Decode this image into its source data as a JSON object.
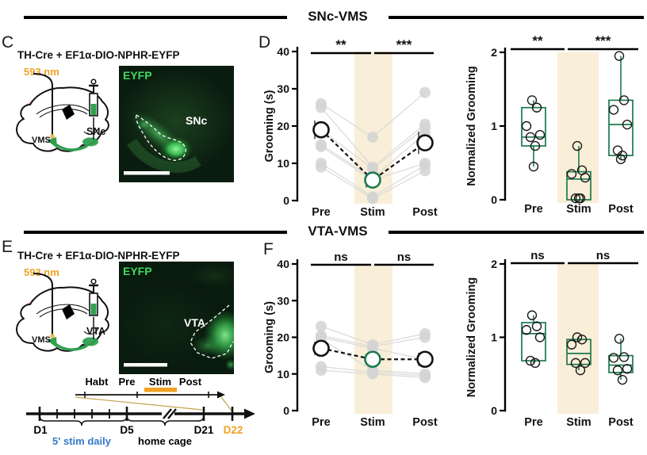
{
  "sections": {
    "snc": {
      "title": "SNc-VMS"
    },
    "vta": {
      "title": "VTA-VMS"
    }
  },
  "colors": {
    "green": "#1b7a4f",
    "schematic_green": "#2fa050",
    "orange": "#f2a124",
    "stim_band": "#f9efd8",
    "blue": "#3779c9",
    "subject_point": "#d3d3d3",
    "pink": "#f8c6d8",
    "eyfp_green": "#41d95d"
  },
  "panel_c": {
    "label": "C",
    "title": "TH-Cre + EF1α-DIO-NPHR-EYFP",
    "wavelength": "593 nm",
    "schematic": {
      "fiber_label": "VMS",
      "site_label": "SNc"
    },
    "micrograph": {
      "stain": "EYFP",
      "region": "SNc"
    }
  },
  "panel_d": {
    "label": "D"
  },
  "panel_e": {
    "label": "E",
    "title": "TH-Cre + EF1α-DIO-NPHR-EYFP",
    "wavelength": "593 nm",
    "schematic": {
      "fiber_label": "VMS",
      "site_label": "VTA"
    },
    "micrograph": {
      "stain": "EYFP",
      "region": "VTA"
    },
    "timeline": {
      "stages": [
        "Habt",
        "Pre",
        "Stim",
        "Post"
      ],
      "days": [
        "D1",
        "D5",
        "D21",
        "D22"
      ],
      "stim_daily_label": "5' stim daily",
      "home_cage_label": "home cage"
    }
  },
  "panel_f": {
    "label": "F"
  },
  "chart_data": [
    {
      "id": "snc_grooming",
      "panel": "D",
      "type": "paired-scatter",
      "title": "",
      "ylabel": "Grooming (s)",
      "ylim": [
        0,
        40
      ],
      "yticks": [
        0,
        10,
        20,
        30,
        40
      ],
      "categories": [
        "Pre",
        "Stim",
        "Post"
      ],
      "stim_band_category": "Stim",
      "significance": [
        {
          "pair": [
            "Pre",
            "Stim"
          ],
          "label": "**"
        },
        {
          "pair": [
            "Stim",
            "Post"
          ],
          "label": "***"
        }
      ],
      "subjects": [
        [
          26,
          17,
          29
        ],
        [
          25,
          9,
          20.5
        ],
        [
          19,
          8.5,
          19.5
        ],
        [
          15,
          6,
          18
        ],
        [
          14.5,
          5.5,
          10
        ],
        [
          10,
          1,
          9.5
        ],
        [
          9,
          0.5,
          8
        ]
      ],
      "means": [
        19,
        5.5,
        15.5
      ],
      "sem": [
        2.5,
        2,
        3
      ]
    },
    {
      "id": "snc_normalized",
      "panel": "D",
      "type": "box",
      "title": "",
      "ylabel": "Normalized Grooming",
      "ylim": [
        0,
        2
      ],
      "yticks": [
        0,
        1,
        2
      ],
      "categories": [
        "Pre",
        "Stim",
        "Post"
      ],
      "stim_band_category": "Stim",
      "significance": [
        {
          "pair": [
            "Pre",
            "Stim"
          ],
          "label": "**"
        },
        {
          "pair": [
            "Stim",
            "Post"
          ],
          "label": "***"
        }
      ],
      "boxes": [
        {
          "whisker_low": 0.45,
          "q1": 0.73,
          "median": 0.85,
          "q3": 1.25,
          "whisker_high": 1.35,
          "points": [
            1.35,
            1.25,
            1.0,
            0.88,
            0.85,
            0.73,
            0.45
          ]
        },
        {
          "whisker_low": 0.0,
          "q1": 0.0,
          "median": 0.28,
          "q3": 0.38,
          "whisker_high": 0.73,
          "points": [
            0.73,
            0.4,
            0.35,
            0.3,
            0.02,
            0.02,
            0.02
          ]
        },
        {
          "whisker_low": 0.55,
          "q1": 0.6,
          "median": 1.02,
          "q3": 1.35,
          "whisker_high": 1.95,
          "points": [
            1.95,
            1.35,
            1.22,
            1.02,
            0.67,
            0.6,
            0.55
          ]
        }
      ]
    },
    {
      "id": "vta_grooming",
      "panel": "F",
      "type": "paired-scatter",
      "title": "",
      "ylabel": "Grooming (s)",
      "ylim": [
        0,
        40
      ],
      "yticks": [
        0,
        10,
        20,
        30,
        40
      ],
      "categories": [
        "Pre",
        "Stim",
        "Post"
      ],
      "stim_band_category": "Stim",
      "significance": [
        {
          "pair": [
            "Pre",
            "Stim"
          ],
          "label": "ns"
        },
        {
          "pair": [
            "Stim",
            "Post"
          ],
          "label": "ns"
        }
      ],
      "subjects": [
        [
          23,
          18,
          21
        ],
        [
          20.5,
          17.5,
          20
        ],
        [
          20,
          17,
          14
        ],
        [
          19.5,
          11,
          10
        ],
        [
          12,
          10.5,
          9.5
        ],
        [
          11,
          10,
          9
        ]
      ],
      "means": [
        17,
        14,
        14
      ],
      "sem": [
        1.8,
        1.5,
        1.8
      ]
    },
    {
      "id": "vta_normalized",
      "panel": "F",
      "type": "box",
      "title": "",
      "ylabel": "Normalized Grooming",
      "ylim": [
        0,
        2
      ],
      "yticks": [
        0,
        1,
        2
      ],
      "categories": [
        "Pre",
        "Stim",
        "Post"
      ],
      "stim_band_category": "Stim",
      "significance": [
        {
          "pair": [
            "Pre",
            "Stim"
          ],
          "label": "ns"
        },
        {
          "pair": [
            "Stim",
            "Post"
          ],
          "label": "ns"
        }
      ],
      "boxes": [
        {
          "whisker_low": 0.65,
          "q1": 0.68,
          "median": 1.05,
          "q3": 1.2,
          "whisker_high": 1.3,
          "points": [
            1.3,
            1.15,
            1.1,
            1.0,
            0.68,
            0.65
          ]
        },
        {
          "whisker_low": 0.55,
          "q1": 0.63,
          "median": 0.78,
          "q3": 0.97,
          "whisker_high": 1.0,
          "points": [
            1.0,
            0.97,
            0.9,
            0.65,
            0.65,
            0.55
          ]
        },
        {
          "whisker_low": 0.42,
          "q1": 0.52,
          "median": 0.62,
          "q3": 0.75,
          "whisker_high": 0.98,
          "points": [
            0.98,
            0.73,
            0.72,
            0.57,
            0.55,
            0.42
          ]
        }
      ]
    }
  ]
}
